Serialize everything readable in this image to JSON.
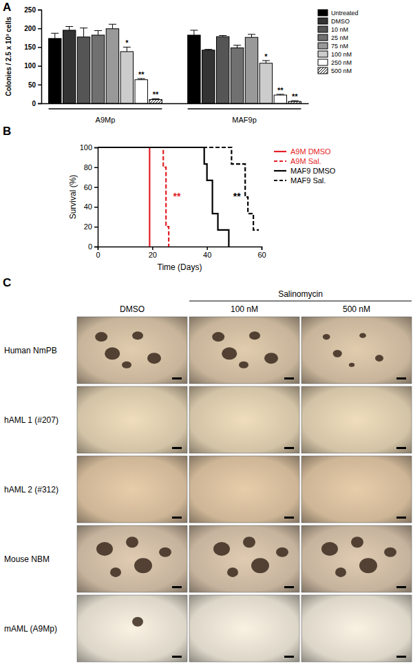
{
  "chart_data": [
    {
      "type": "bar",
      "title": "A",
      "ylabel": "Colonies / 2.5 x 10³ cells",
      "categories": [
        "A9Mp",
        "MAF9p"
      ],
      "ylim": [
        0,
        250
      ],
      "yticks": [
        0,
        50,
        100,
        150,
        200,
        250
      ],
      "legend": "right",
      "series": [
        {
          "name": "Untreated",
          "color": "#000000",
          "values": [
            173,
            182
          ],
          "errors": [
            14,
            13
          ]
        },
        {
          "name": "DMSO",
          "color": "#333333",
          "values": [
            195,
            142
          ],
          "errors": [
            10,
            2
          ]
        },
        {
          "name": "10 nM",
          "color": "#555555",
          "values": [
            177,
            178
          ],
          "errors": [
            24,
            3
          ]
        },
        {
          "name": "25 nM",
          "color": "#707070",
          "values": [
            182,
            148
          ],
          "errors": [
            12,
            7
          ]
        },
        {
          "name": "75 nM",
          "color": "#999999",
          "values": [
            199,
            176
          ],
          "errors": [
            12,
            8
          ]
        },
        {
          "name": "100 nM",
          "color": "#cccccc",
          "values": [
            138,
            107
          ],
          "errors": [
            12,
            7
          ],
          "significance": [
            "*",
            "*"
          ]
        },
        {
          "name": "250 nM",
          "color": "#ffffff",
          "values": [
            63,
            22
          ],
          "errors": [
            3,
            2
          ],
          "significance": [
            "**",
            "**"
          ]
        },
        {
          "name": "500 nM",
          "color": "#ffffff",
          "marker": "hatch",
          "values": [
            10,
            5
          ],
          "errors": [
            2,
            2
          ],
          "significance": [
            "**",
            "**"
          ]
        }
      ]
    },
    {
      "type": "step",
      "title": "B",
      "xlabel": "Time (Days)",
      "ylabel": "Survival (%)",
      "xlim": [
        0,
        60
      ],
      "xticks": [
        0,
        20,
        40,
        60
      ],
      "ylim": [
        0,
        100
      ],
      "yticks": [
        0,
        20,
        40,
        60,
        80,
        100
      ],
      "legend": "right",
      "series": [
        {
          "name": "A9M DMSO",
          "color": "#e41e26",
          "line_style": "solid",
          "x": [
            0,
            19
          ],
          "values": [
            100,
            0
          ]
        },
        {
          "name": "A9M Sal.",
          "color": "#e41e26",
          "line_style": "dashed",
          "x": [
            0,
            24,
            25,
            26
          ],
          "values": [
            100,
            80,
            20,
            0
          ]
        },
        {
          "name": "MAF9 DMSO",
          "color": "#000000",
          "line_style": "solid",
          "x": [
            0,
            39,
            40,
            42,
            44,
            48
          ],
          "values": [
            100,
            83.3,
            66.7,
            33.3,
            16.7,
            0
          ]
        },
        {
          "name": "MAF9 Sal.",
          "color": "#000000",
          "line_style": "dashed",
          "x": [
            0,
            49,
            54,
            55,
            57,
            59
          ],
          "values": [
            100,
            83.3,
            50,
            33.3,
            16.7,
            16.7
          ]
        }
      ],
      "annotations": [
        {
          "text": "**",
          "x": 29,
          "y": 47,
          "color": "#e41e26"
        },
        {
          "text": "**",
          "x": 51,
          "y": 47,
          "color": "#000000"
        }
      ]
    }
  ],
  "image_grid": {
    "title": "C",
    "column_group": "Salinomycin",
    "columns": [
      "DMSO",
      "100 nM",
      "500 nM"
    ],
    "rows": [
      "Human NmPB",
      "hAML 1 (#207)",
      "hAML 2 (#312)",
      "Mouse NBM",
      "mAML (A9Mp)"
    ]
  }
}
